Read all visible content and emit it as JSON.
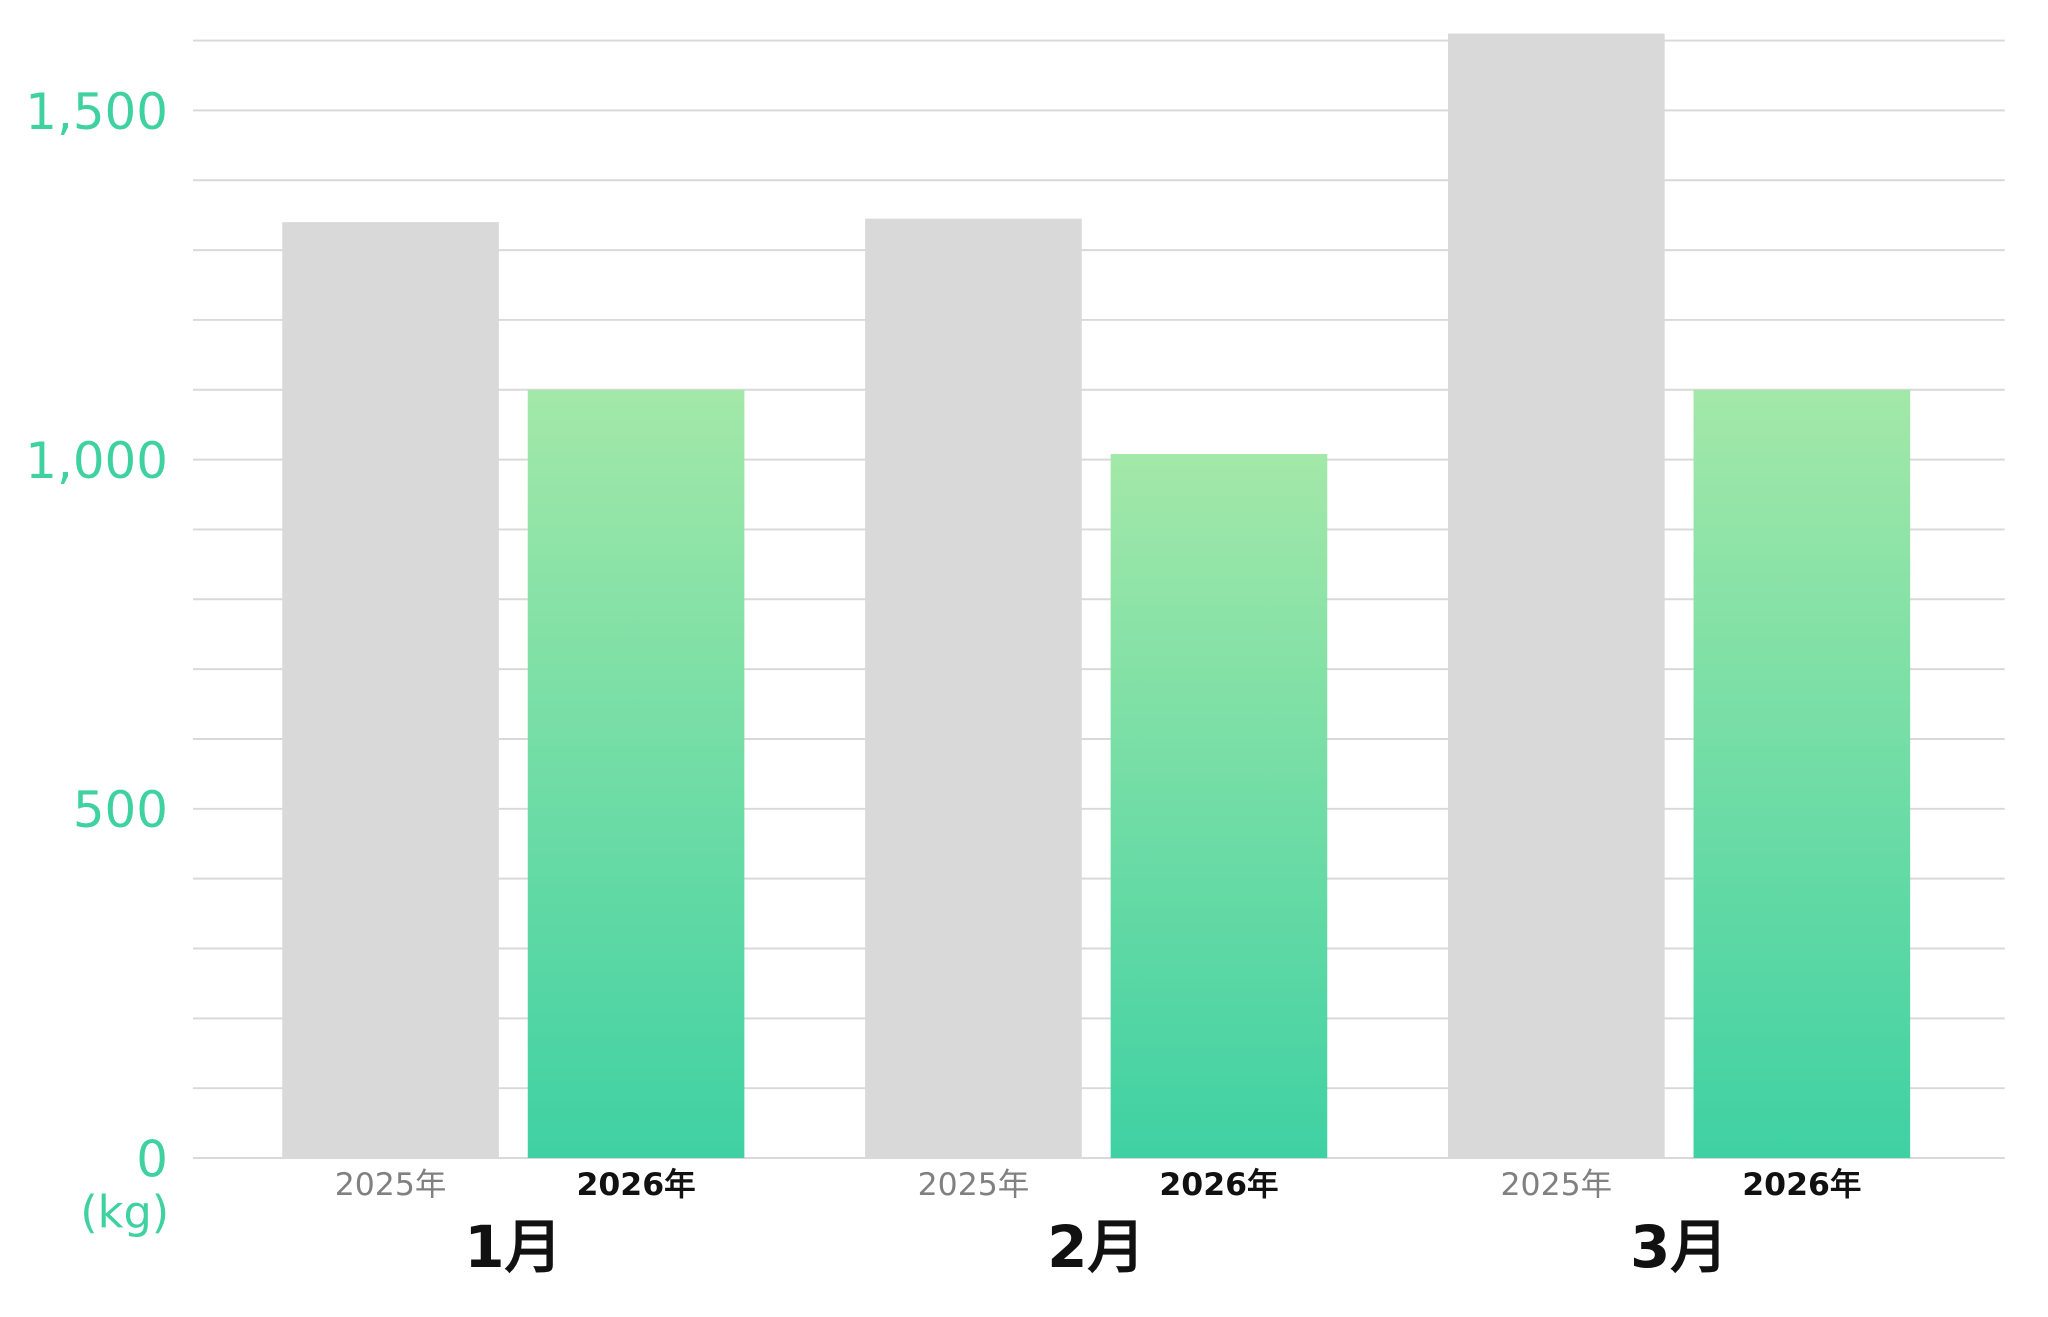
{
  "chart_data": {
    "type": "bar",
    "title": "",
    "xlabel": "",
    "ylabel": "",
    "unit_label": "(kg)",
    "categories": [
      "1月",
      "2月",
      "3月"
    ],
    "series": [
      {
        "name": "2025年",
        "values": [
          1340,
          1345,
          1610
        ],
        "color": "#d9d9d9",
        "label_color": "#808080"
      },
      {
        "name": "2026年",
        "values": [
          1100,
          1008,
          1100
        ],
        "gradient": [
          "#a3e8a8",
          "#3fd1a3"
        ],
        "label_color": "#111111"
      }
    ],
    "ylim": [
      0,
      1600
    ],
    "y_ticks": [
      0,
      500,
      1000,
      1500
    ],
    "y_tick_labels": [
      "0",
      "500",
      "1,000",
      "1,500"
    ],
    "grid_step": 100,
    "grid": true,
    "legend": "none",
    "colors": {
      "axis_text": "#3fd1a0",
      "grid": "#d9d9d9",
      "category_text": "#111111"
    }
  }
}
